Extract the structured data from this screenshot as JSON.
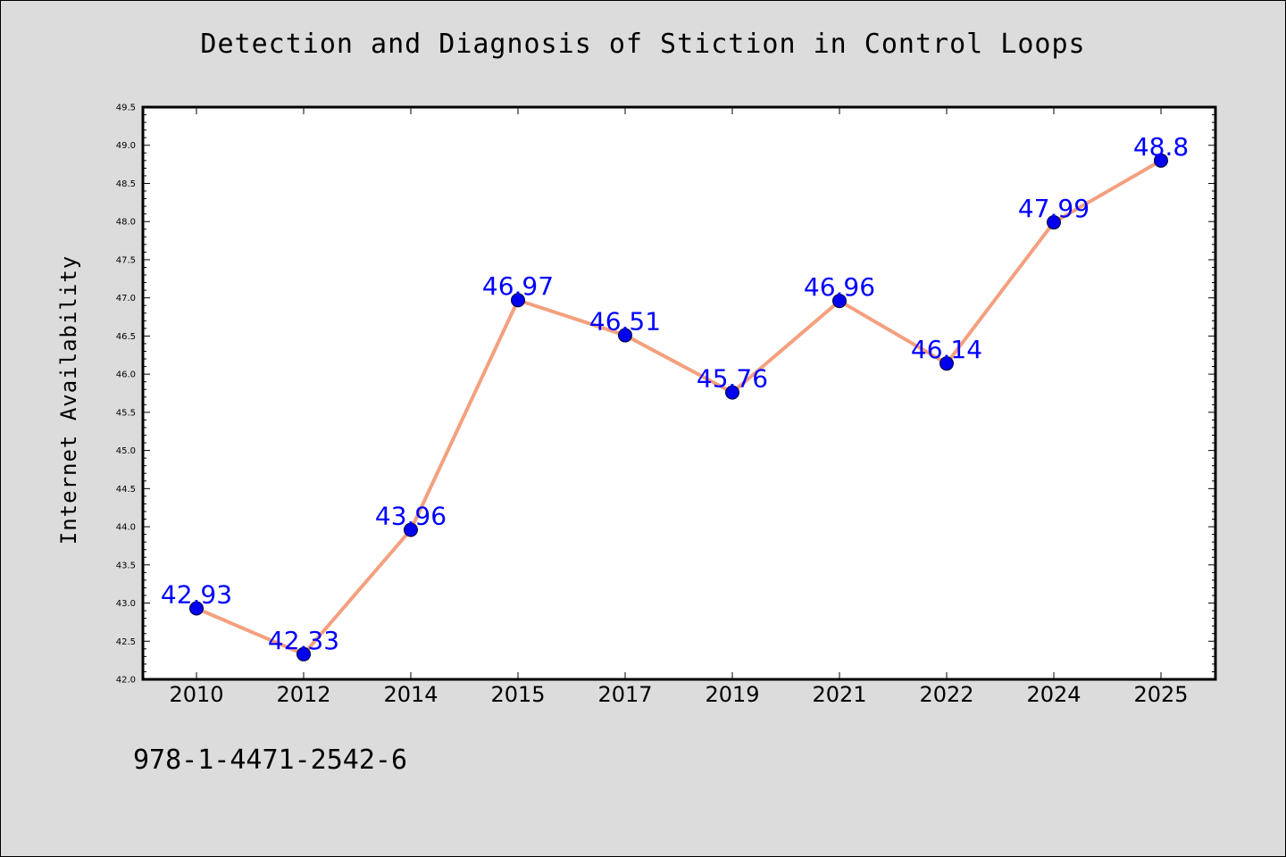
{
  "chart_data": {
    "type": "line",
    "title": "Detection and Diagnosis of Stiction in Control Loops",
    "xlabel": "",
    "ylabel": "Internet Availability",
    "categories": [
      "2010",
      "2012",
      "2014",
      "2015",
      "2017",
      "2019",
      "2021",
      "2022",
      "2024",
      "2025"
    ],
    "series": [
      {
        "values": [
          42.93,
          42.33,
          43.96,
          46.97,
          46.51,
          45.76,
          46.96,
          46.14,
          47.99,
          48.8
        ],
        "data_labels": [
          "42.93",
          "42.33",
          "43.96",
          "46.97",
          "46.51",
          "45.76",
          "46.96",
          "46.14",
          "47.99",
          "48.8"
        ]
      }
    ],
    "ylim": [
      42.0,
      49.5
    ],
    "yticks": [
      "42.0",
      "42.5",
      "43.0",
      "43.5",
      "44.0",
      "44.5",
      "45.0",
      "45.5",
      "46.0",
      "46.5",
      "47.0",
      "47.5",
      "48.0",
      "48.5",
      "49.0",
      "49.5"
    ],
    "grid": false,
    "colors": {
      "line": "#f4a07e",
      "marker": "#0000ee",
      "label": "#0000ff",
      "page_background": "#dcdcdc",
      "plot_background": "#ffffff"
    }
  },
  "footer_text": "978-1-4471-2542-6"
}
